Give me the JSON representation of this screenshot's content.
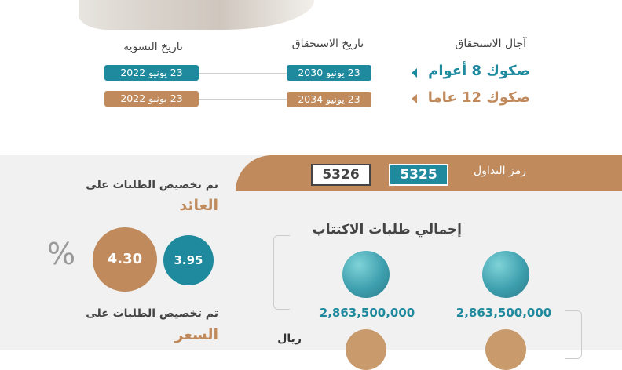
{
  "header": {
    "tenor_label": "آجال الاستحقاق",
    "maturity_label": "تاريخ الاستحقاق",
    "settlement_label": "تاريخ التسوية"
  },
  "rows": [
    {
      "name": "صكوك 8 أعوام",
      "maturity": "23 يونيو 2030",
      "settlement": "23 يونيو 2022",
      "color": "#1f8a9e"
    },
    {
      "name": "صكوك 12 عاما",
      "maturity": "23 يونيو 2034",
      "settlement": "23 يونيو 2022",
      "color": "#c08a5c"
    }
  ],
  "trading": {
    "label": "رمز التداول",
    "code_teal": "5325",
    "code_white": "5326"
  },
  "yield_alloc": {
    "title": "تم تخصيص الطلبات على",
    "subtitle": "العائد",
    "value_teal": "3.95",
    "value_tan": "4.30",
    "unit": "%"
  },
  "price_alloc": {
    "title": "تم تخصيص الطلبات على",
    "subtitle": "السعر"
  },
  "subscriptions": {
    "title": "إجمالي طلبات الاكتتاب",
    "value_left": "2,863,500,000",
    "value_right": "2,863,500,000",
    "currency": "ريال"
  },
  "colors": {
    "teal": "#1f8a9e",
    "tan": "#c08a5c",
    "gray_bg": "#f1f1f1"
  }
}
